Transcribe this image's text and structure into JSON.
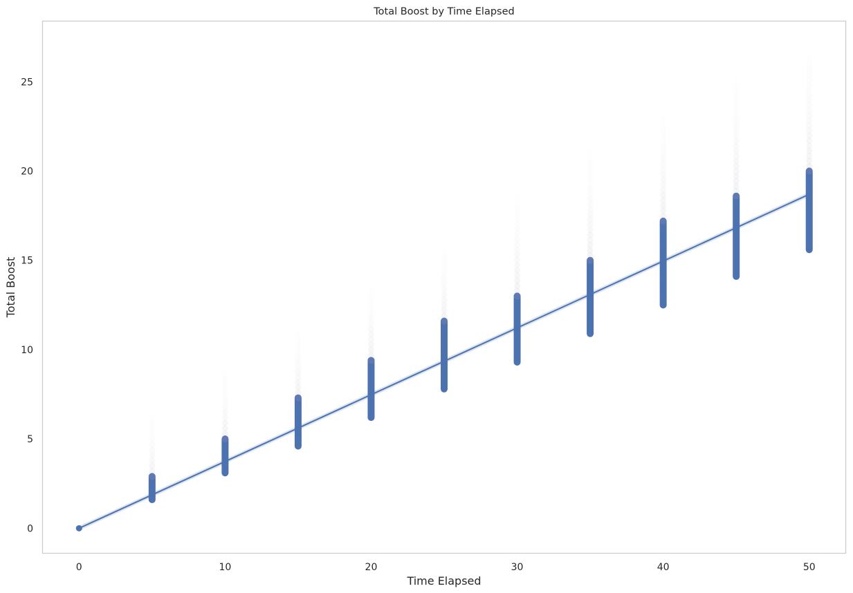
{
  "chart_data": {
    "type": "scatter",
    "title": "Total Boost by Time Elapsed",
    "xlabel": "Time Elapsed",
    "ylabel": "Total Boost",
    "xlim": [
      -2.5,
      52.5
    ],
    "ylim": [
      -1.4,
      28.4
    ],
    "xticks": [
      0,
      10,
      20,
      30,
      40,
      50
    ],
    "yticks": [
      0,
      5,
      10,
      15,
      20,
      25
    ],
    "grid": false,
    "colors": {
      "points": "#4c72b0",
      "line": "#4c72b0",
      "tail": "#9a9ab0",
      "spine": "#cccccc"
    },
    "point_columns": [
      {
        "x": 0,
        "dense_min": 0.0,
        "dense_max": 0.0,
        "tail_max": 0.0
      },
      {
        "x": 5,
        "dense_min": 1.6,
        "dense_max": 2.9,
        "tail_max": 6.2
      },
      {
        "x": 10,
        "dense_min": 3.1,
        "dense_max": 5.0,
        "tail_max": 8.6
      },
      {
        "x": 15,
        "dense_min": 4.6,
        "dense_max": 7.3,
        "tail_max": 10.8
      },
      {
        "x": 20,
        "dense_min": 6.2,
        "dense_max": 9.4,
        "tail_max": 13.5
      },
      {
        "x": 25,
        "dense_min": 7.8,
        "dense_max": 11.6,
        "tail_max": 15.5
      },
      {
        "x": 30,
        "dense_min": 9.3,
        "dense_max": 13.0,
        "tail_max": 18.5
      },
      {
        "x": 35,
        "dense_min": 10.9,
        "dense_max": 15.0,
        "tail_max": 21.0
      },
      {
        "x": 40,
        "dense_min": 12.5,
        "dense_max": 17.2,
        "tail_max": 23.0
      },
      {
        "x": 45,
        "dense_min": 14.1,
        "dense_max": 18.6,
        "tail_max": 25.0
      },
      {
        "x": 50,
        "dense_min": 15.6,
        "dense_max": 20.0,
        "tail_max": 26.5
      }
    ],
    "regression": {
      "x": [
        0,
        50
      ],
      "y": [
        0.0,
        18.7
      ]
    }
  }
}
